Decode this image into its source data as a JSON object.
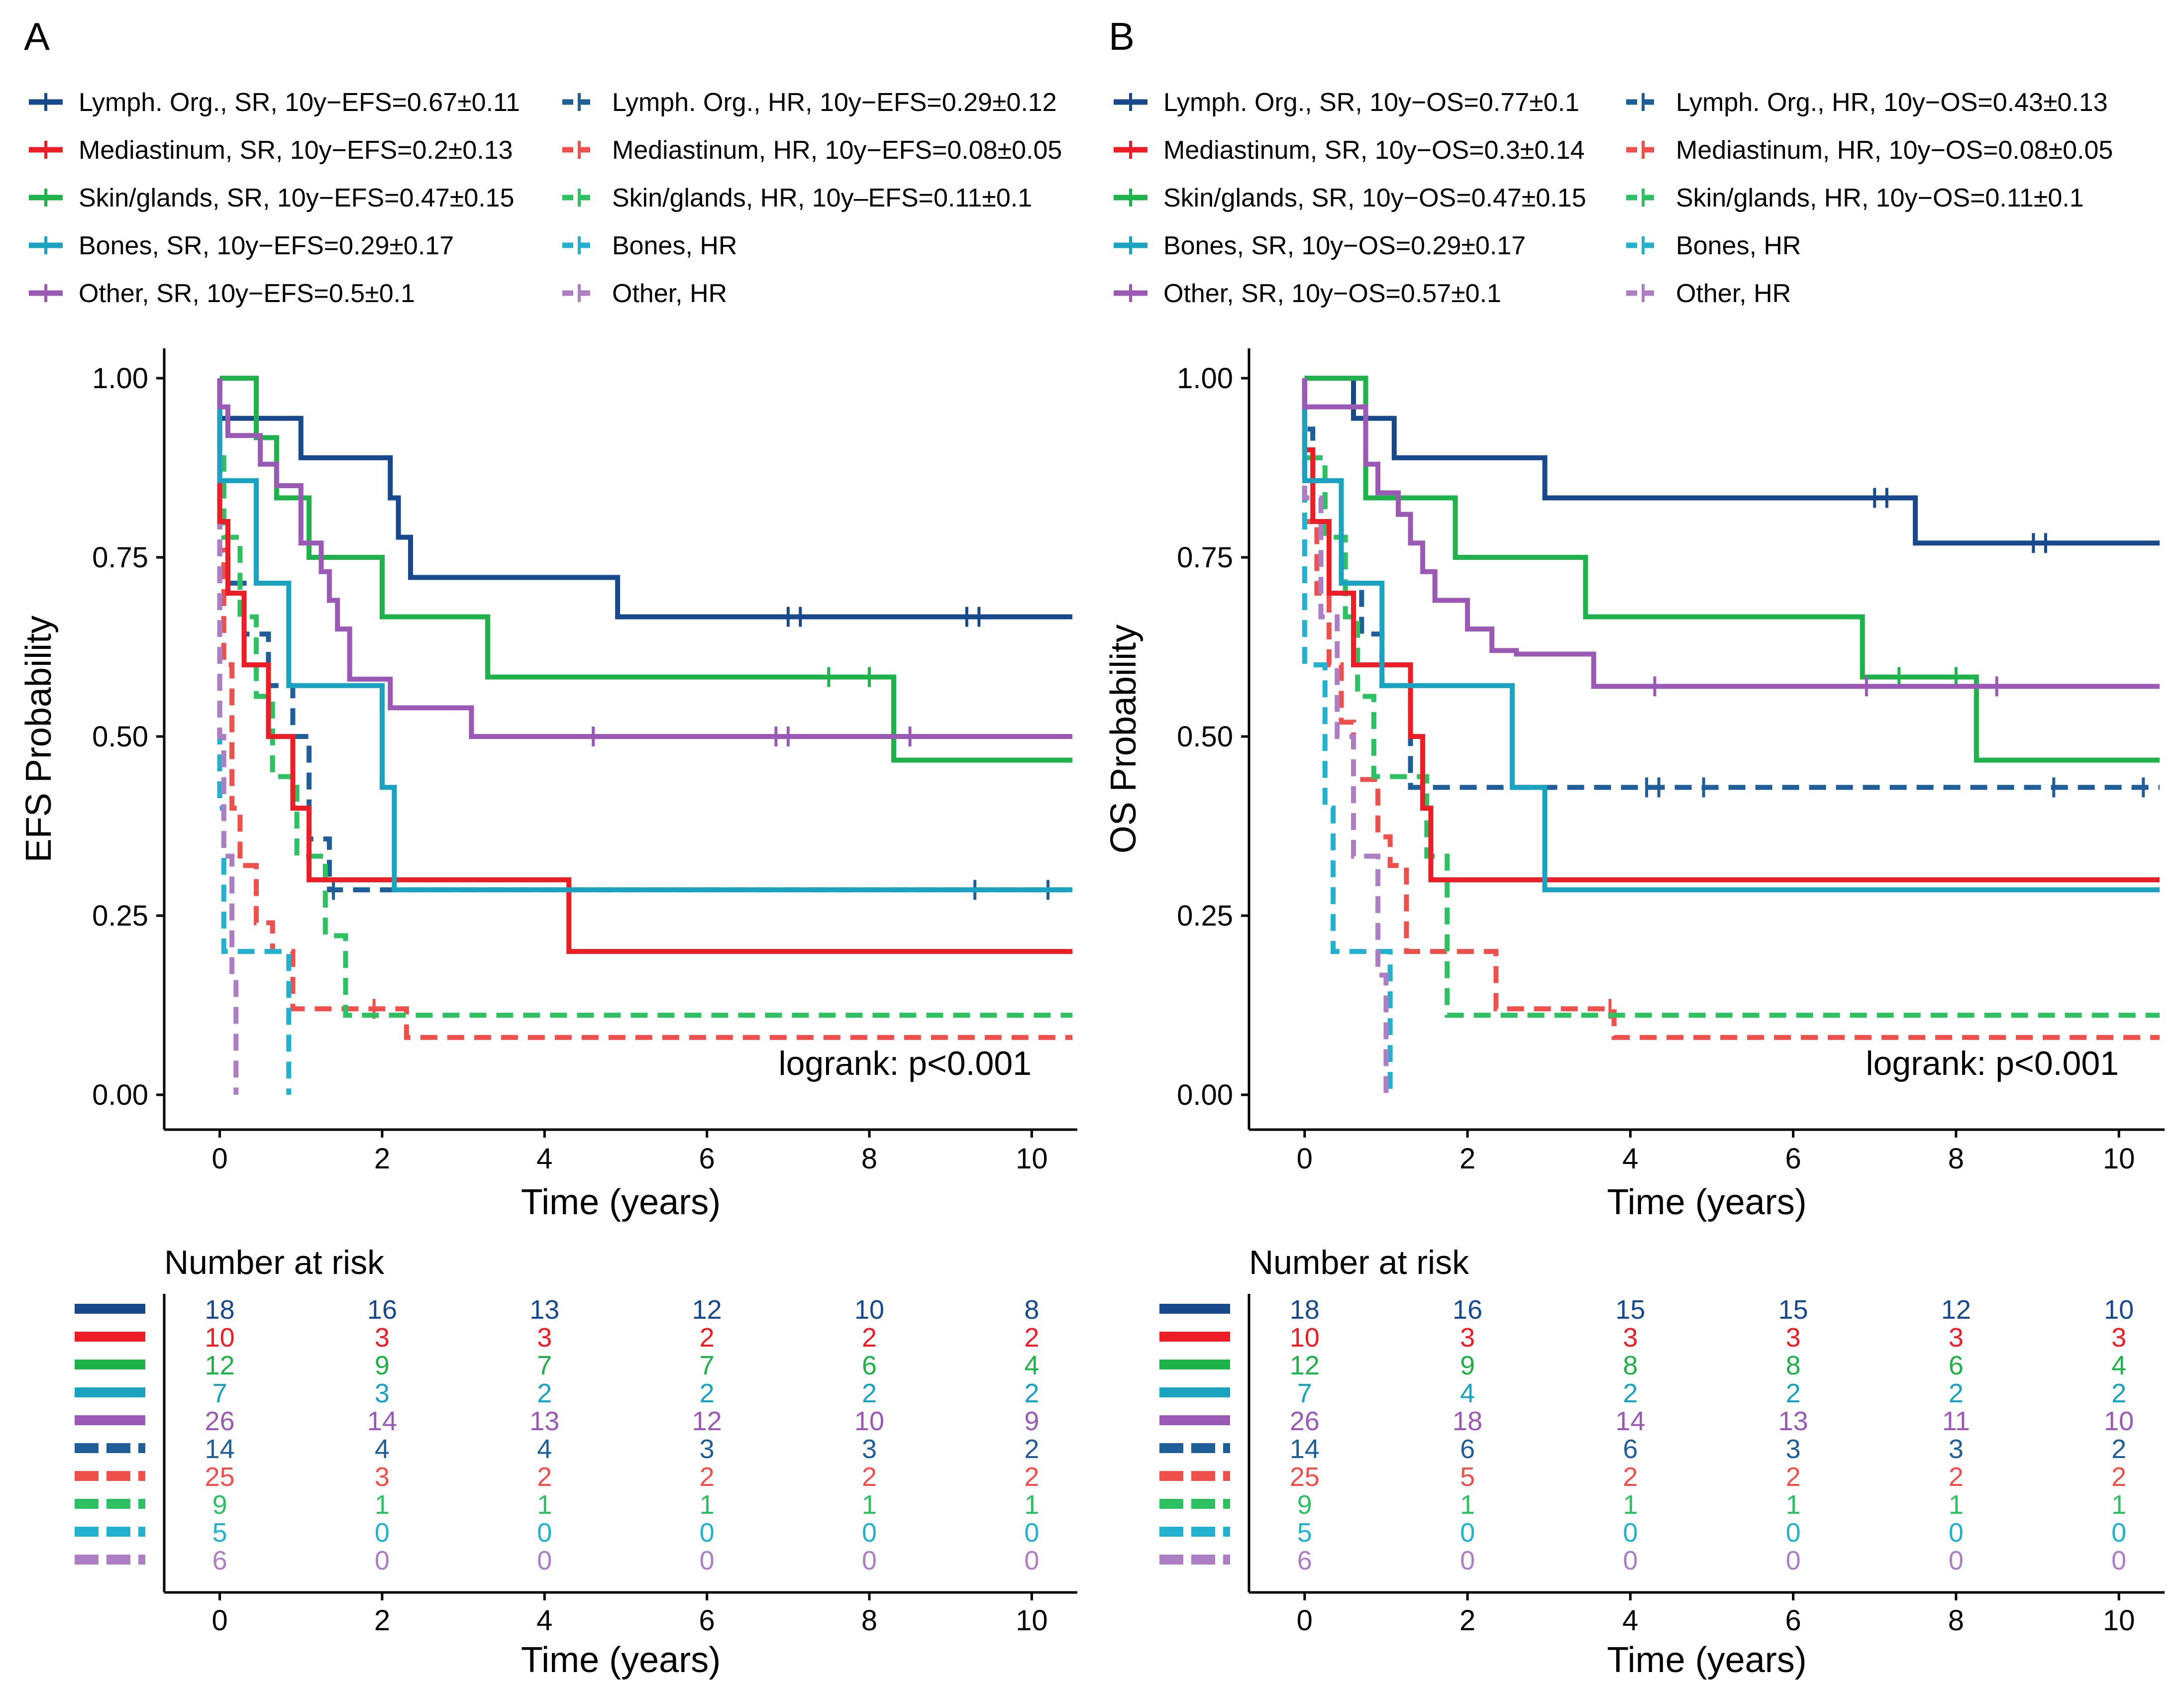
{
  "chart_data": [
    {
      "type": "line",
      "panel_label": "A",
      "ylabel": "EFS Probability",
      "xlabel": "Time (years)",
      "xlim": [
        -0.5,
        10.5
      ],
      "ylim": [
        0,
        1
      ],
      "x_ticks": [
        0,
        2,
        4,
        6,
        8,
        10
      ],
      "y_ticks": [
        0,
        0.25,
        0.5,
        0.75,
        1
      ],
      "y_tick_labels": [
        "0.00",
        "0.25",
        "0.50",
        "0.75",
        "1.00"
      ],
      "annotation": "logrank: p<0.001",
      "risk_title": "Number at risk",
      "risk_xlabel": "Time (years)",
      "legend_position": "top",
      "series": [
        {
          "name": "Lymph. Org., SR, 10y−EFS=0.67±0.11",
          "color": "#17498c",
          "dash": false,
          "x": [
            0,
            1.0,
            2.1,
            2.2,
            2.35,
            4.9,
            10.5
          ],
          "y": [
            0.944,
            0.889,
            0.833,
            0.778,
            0.722,
            0.667,
            0.667
          ],
          "censor_x": [
            7.0,
            7.15,
            9.2,
            9.35
          ],
          "risk": [
            "18",
            "16",
            "13",
            "12",
            "10",
            "8"
          ]
        },
        {
          "name": "Mediastinum, SR, 10y−EFS=0.2±0.13",
          "color": "#ee1c25",
          "dash": false,
          "x": [
            0,
            0.1,
            0.3,
            0.6,
            0.9,
            1.1,
            1.15,
            4.3,
            10.5
          ],
          "y": [
            0.8,
            0.7,
            0.6,
            0.5,
            0.4,
            0.3,
            0.3,
            0.2,
            0.2
          ],
          "censor_x": [],
          "risk": [
            "10",
            "3",
            "3",
            "2",
            "2",
            "2"
          ]
        },
        {
          "name": "Skin/glands, SR, 10y−EFS=0.47±0.15",
          "color": "#1fb14a",
          "dash": false,
          "x": [
            0,
            0.1,
            0.45,
            0.7,
            1.1,
            2.0,
            3.3,
            8.3,
            10.5
          ],
          "y": [
            1.0,
            1.0,
            0.917,
            0.833,
            0.75,
            0.667,
            0.583,
            0.467,
            0.467
          ],
          "censor_x": [
            7.5,
            8.0
          ],
          "risk": [
            "12",
            "9",
            "7",
            "7",
            "6",
            "4"
          ]
        },
        {
          "name": "Bones, SR, 10y−EFS=0.29±0.17",
          "color": "#1aa2c1",
          "dash": false,
          "x": [
            0,
            0.45,
            0.85,
            2.0,
            2.15,
            10.5
          ],
          "y": [
            0.857,
            0.714,
            0.571,
            0.429,
            0.286,
            0.286
          ],
          "censor_x": [],
          "risk": [
            "7",
            "3",
            "2",
            "2",
            "2",
            "2"
          ]
        },
        {
          "name": "Other, SR, 10y−EFS=0.5±0.1",
          "color": "#9b59b6",
          "dash": false,
          "x": [
            0,
            0.1,
            0.5,
            0.7,
            1.0,
            1.25,
            1.35,
            1.45,
            1.6,
            2.1,
            3.1,
            10.5
          ],
          "y": [
            0.96,
            0.92,
            0.88,
            0.85,
            0.77,
            0.73,
            0.69,
            0.65,
            0.58,
            0.54,
            0.5,
            0.5
          ],
          "censor_x": [
            4.6,
            6.85,
            7.0,
            8.5
          ],
          "risk": [
            "26",
            "14",
            "13",
            "12",
            "10",
            "9"
          ]
        },
        {
          "name": "Lymph. Org., HR, 10y−EFS=0.29±0.12",
          "color": "#1f5e99",
          "dash": true,
          "x": [
            0,
            0.1,
            0.3,
            0.6,
            0.9,
            1.1,
            1.3,
            1.35,
            10.5
          ],
          "y": [
            0.786,
            0.714,
            0.643,
            0.571,
            0.5,
            0.357,
            0.357,
            0.286,
            0.286
          ],
          "censor_x": [
            1.4,
            9.3,
            10.2
          ],
          "risk": [
            "14",
            "4",
            "4",
            "3",
            "3",
            "2"
          ]
        },
        {
          "name": "Mediastinum, HR, 10y−EFS=0.08±0.05",
          "color": "#f0504c",
          "dash": true,
          "x": [
            0,
            0.05,
            0.15,
            0.25,
            0.45,
            0.65,
            0.9,
            1.3,
            2.3,
            10.5
          ],
          "y": [
            0.76,
            0.6,
            0.4,
            0.32,
            0.24,
            0.2,
            0.12,
            0.12,
            0.08,
            0.08
          ],
          "censor_x": [
            1.9
          ],
          "risk": [
            "25",
            "3",
            "2",
            "2",
            "2",
            "2"
          ]
        },
        {
          "name": "Skin/glands, HR, 10y‒EFS=0.11±0.1",
          "color": "#2ec162",
          "dash": true,
          "x": [
            0,
            0.05,
            0.25,
            0.45,
            0.65,
            0.95,
            1.3,
            1.55,
            10.5
          ],
          "y": [
            0.889,
            0.778,
            0.667,
            0.556,
            0.444,
            0.333,
            0.222,
            0.111,
            0.111
          ],
          "censor_x": [],
          "risk": [
            "9",
            "1",
            "1",
            "1",
            "1",
            "1"
          ]
        },
        {
          "name": "Bones, HR",
          "color": "#22b1cf",
          "dash": true,
          "x": [
            0,
            0.05,
            0.8,
            0.85
          ],
          "y": [
            0.4,
            0.2,
            0.2,
            0.0
          ],
          "censor_x": [],
          "risk": [
            "5",
            "0",
            "0",
            "0",
            "0",
            "0"
          ]
        },
        {
          "name": "Other, HR",
          "color": "#ae7ec5",
          "dash": true,
          "x": [
            0,
            0.05,
            0.15,
            0.2
          ],
          "y": [
            0.5,
            0.333,
            0.167,
            0.0
          ],
          "censor_x": [],
          "risk": [
            "6",
            "0",
            "0",
            "0",
            "0",
            "0"
          ]
        }
      ]
    },
    {
      "type": "line",
      "panel_label": "B",
      "ylabel": "OS Probability",
      "xlabel": "Time (years)",
      "xlim": [
        -0.5,
        10.5
      ],
      "ylim": [
        0,
        1
      ],
      "x_ticks": [
        0,
        2,
        4,
        6,
        8,
        10
      ],
      "y_ticks": [
        0,
        0.25,
        0.5,
        0.75,
        1
      ],
      "y_tick_labels": [
        "0.00",
        "0.25",
        "0.50",
        "0.75",
        "1.00"
      ],
      "annotation": "logrank: p<0.001",
      "risk_title": "Number at risk",
      "risk_xlabel": "Time (years)",
      "legend_position": "top",
      "series": [
        {
          "name": "Lymph. Org., SR, 10y−OS=0.77±0.1",
          "color": "#17498c",
          "dash": false,
          "x": [
            0,
            0.6,
            1.1,
            2.95,
            7.5,
            10.5
          ],
          "y": [
            1.0,
            0.944,
            0.889,
            0.833,
            0.77,
            0.77
          ],
          "censor_x": [
            7.0,
            7.15,
            8.95,
            9.1
          ],
          "risk": [
            "18",
            "16",
            "15",
            "15",
            "12",
            "10"
          ]
        },
        {
          "name": "Mediastinum, SR, 10y−OS=0.3±0.14",
          "color": "#ee1c25",
          "dash": false,
          "x": [
            0,
            0.1,
            0.3,
            0.6,
            1.3,
            1.45,
            1.55,
            10.5
          ],
          "y": [
            0.9,
            0.8,
            0.7,
            0.6,
            0.5,
            0.4,
            0.3,
            0.3
          ],
          "censor_x": [],
          "risk": [
            "10",
            "3",
            "3",
            "3",
            "3",
            "3"
          ]
        },
        {
          "name": "Skin/glands, SR, 10y−OS=0.47±0.15",
          "color": "#1fb14a",
          "dash": false,
          "x": [
            0,
            0.75,
            1.85,
            3.45,
            6.85,
            8.25,
            10.5
          ],
          "y": [
            1.0,
            0.833,
            0.75,
            0.667,
            0.583,
            0.467,
            0.467
          ],
          "censor_x": [
            7.3,
            8.0
          ],
          "risk": [
            "12",
            "9",
            "8",
            "8",
            "6",
            "4"
          ]
        },
        {
          "name": "Bones, SR, 10y−OS=0.29±0.17",
          "color": "#1aa2c1",
          "dash": false,
          "x": [
            0,
            0.45,
            0.95,
            2.55,
            2.95,
            10.5
          ],
          "y": [
            0.857,
            0.714,
            0.571,
            0.429,
            0.286,
            0.286
          ],
          "censor_x": [],
          "risk": [
            "7",
            "4",
            "2",
            "2",
            "2",
            "2"
          ]
        },
        {
          "name": "Other, SR, 10y−OS=0.57±0.1",
          "color": "#9b59b6",
          "dash": false,
          "x": [
            0,
            0.15,
            0.75,
            0.9,
            1.15,
            1.3,
            1.45,
            1.6,
            1.8,
            2.0,
            2.3,
            2.6,
            3.55,
            10.5
          ],
          "y": [
            0.96,
            0.96,
            0.88,
            0.84,
            0.81,
            0.77,
            0.73,
            0.69,
            0.69,
            0.65,
            0.62,
            0.615,
            0.57,
            0.57
          ],
          "censor_x": [
            4.3,
            6.9,
            8.5
          ],
          "risk": [
            "26",
            "18",
            "14",
            "13",
            "11",
            "10"
          ]
        },
        {
          "name": "Lymph. Org., HR, 10y−OS=0.43±0.13",
          "color": "#1f5e99",
          "dash": true,
          "x": [
            0,
            0.1,
            0.25,
            0.45,
            0.7,
            0.95,
            1.3,
            10.5
          ],
          "y": [
            0.929,
            0.857,
            0.786,
            0.714,
            0.643,
            0.571,
            0.429,
            0.429
          ],
          "censor_x": [
            4.2,
            4.35,
            4.9,
            9.2,
            10.3
          ],
          "risk": [
            "14",
            "6",
            "6",
            "3",
            "3",
            "2"
          ]
        },
        {
          "name": "Mediastinum, HR, 10y−OS=0.08±0.05",
          "color": "#f0504c",
          "dash": true,
          "x": [
            0,
            0.15,
            0.3,
            0.45,
            0.6,
            0.9,
            1.05,
            1.25,
            1.85,
            2.35,
            3.8,
            10.5
          ],
          "y": [
            0.8,
            0.7,
            0.6,
            0.52,
            0.44,
            0.36,
            0.32,
            0.2,
            0.2,
            0.12,
            0.08,
            0.08
          ],
          "censor_x": [
            3.75
          ],
          "risk": [
            "25",
            "5",
            "2",
            "2",
            "2",
            "2"
          ]
        },
        {
          "name": "Skin/glands, HR, 10y−OS=0.11±0.1",
          "color": "#2ec162",
          "dash": true,
          "x": [
            0,
            0.25,
            0.5,
            0.65,
            0.85,
            1.1,
            1.5,
            1.75,
            10.5
          ],
          "y": [
            0.889,
            0.778,
            0.667,
            0.556,
            0.444,
            0.444,
            0.333,
            0.111,
            0.111
          ],
          "censor_x": [],
          "risk": [
            "9",
            "1",
            "1",
            "1",
            "1",
            "1"
          ]
        },
        {
          "name": "Bones, HR",
          "color": "#22b1cf",
          "dash": true,
          "x": [
            0,
            0.25,
            0.35,
            1.0,
            1.05
          ],
          "y": [
            0.6,
            0.4,
            0.2,
            0.2,
            0.0
          ],
          "censor_x": [],
          "risk": [
            "5",
            "0",
            "0",
            "0",
            "0",
            "0"
          ]
        },
        {
          "name": "Other, HR",
          "color": "#ae7ec5",
          "dash": true,
          "x": [
            0,
            0.2,
            0.4,
            0.6,
            0.9,
            1.0
          ],
          "y": [
            0.833,
            0.667,
            0.5,
            0.333,
            0.167,
            0.0
          ],
          "censor_x": [],
          "risk": [
            "6",
            "0",
            "0",
            "0",
            "0",
            "0"
          ]
        }
      ]
    }
  ]
}
